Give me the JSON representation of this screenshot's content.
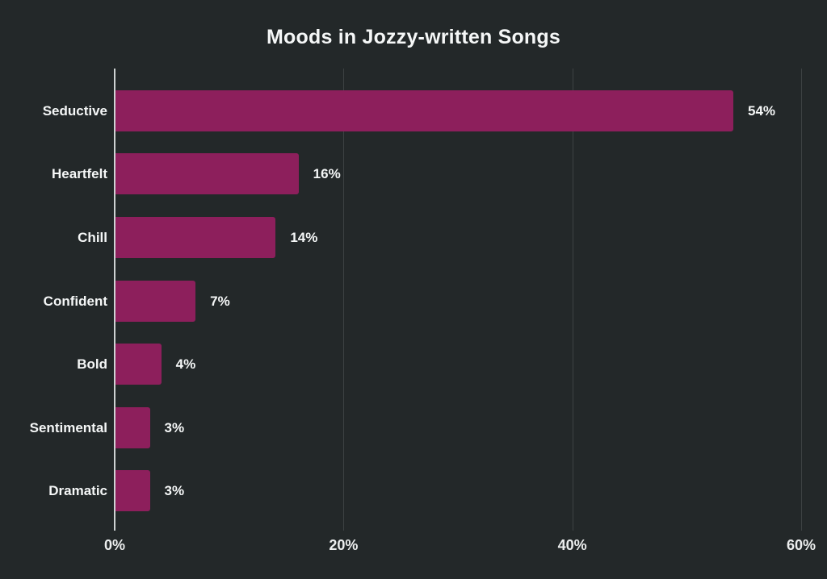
{
  "chart_data": {
    "type": "bar",
    "orientation": "horizontal",
    "title": "Moods in Jozzy-written Songs",
    "categories": [
      "Seductive",
      "Heartfelt",
      "Chill",
      "Confident",
      "Bold",
      "Sentimental",
      "Dramatic"
    ],
    "values": [
      54,
      16,
      14,
      7,
      4,
      3,
      3
    ],
    "value_labels": [
      "54%",
      "16%",
      "14%",
      "7%",
      "4%",
      "3%",
      "3%"
    ],
    "xlabel": "",
    "ylabel": "",
    "x_ticks": [
      0,
      20,
      40,
      60
    ],
    "x_tick_labels": [
      "0%",
      "20%",
      "40%",
      "60%"
    ],
    "xlim": [
      0,
      61
    ],
    "grid": "vertical-gridlines-on",
    "legend": "none",
    "colors": {
      "background": "#232829",
      "bar": "#8d1f5c",
      "gridline": "#3d4243",
      "axis_line": "#cdd2d2",
      "title_text": "#f5f7f7",
      "category_text": "#f5f7f7",
      "value_text": "#f5f7f7",
      "tick_text": "#eceeee"
    }
  }
}
